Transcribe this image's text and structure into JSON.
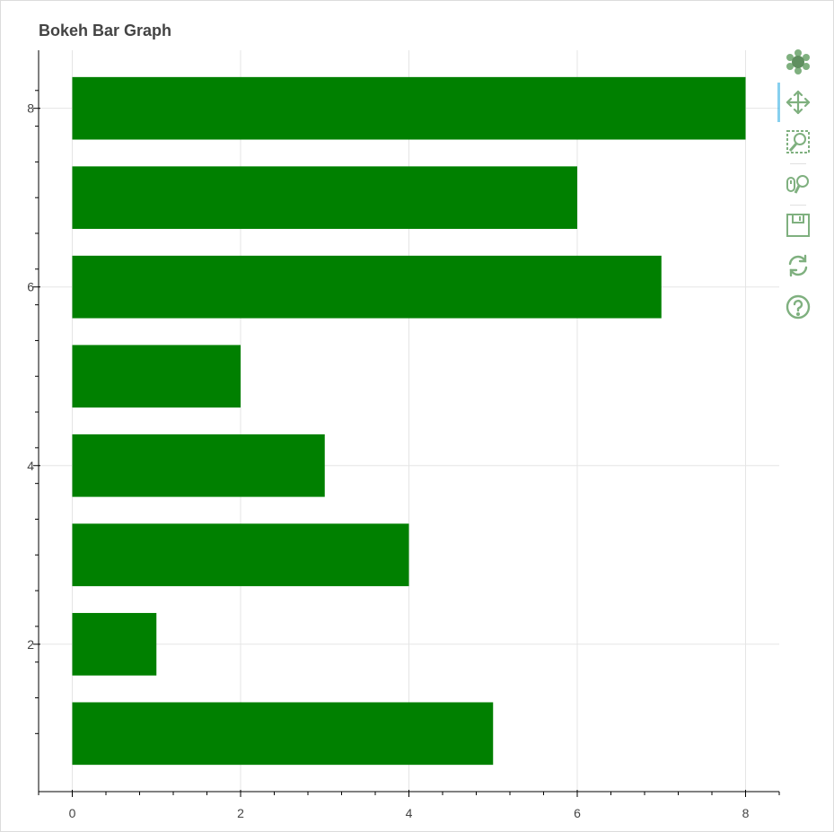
{
  "chart_data": {
    "type": "bar",
    "orientation": "horizontal",
    "title": "Bokeh Bar Graph",
    "xlabel": "",
    "ylabel": "",
    "categories": [
      1,
      2,
      3,
      4,
      5,
      6,
      7,
      8
    ],
    "values": [
      5,
      1,
      4,
      3,
      2,
      7,
      6,
      8
    ],
    "bar_height": 0.7,
    "xlim": [
      -0.4,
      8.4
    ],
    "ylim": [
      0.35,
      8.65
    ],
    "x_ticks": [
      0,
      2,
      4,
      6,
      8
    ],
    "y_ticks": [
      2,
      4,
      6,
      8
    ],
    "grid": true,
    "bar_color": "#008000"
  },
  "toolbar": {
    "logo": "bokeh-logo-icon",
    "tools": [
      "pan-icon",
      "box-zoom-icon",
      "wheel-zoom-icon",
      "save-icon",
      "reset-icon",
      "help-icon"
    ],
    "icon_color": "#7fb07f"
  }
}
